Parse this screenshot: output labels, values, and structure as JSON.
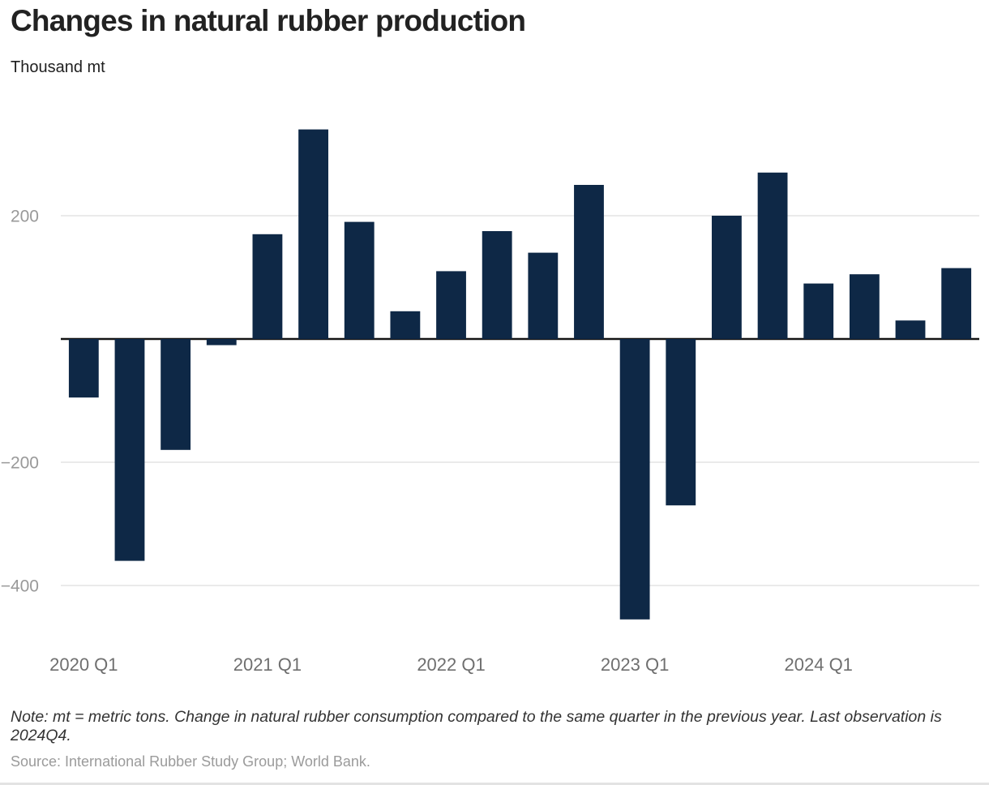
{
  "header": {
    "title": "Changes in natural rubber production",
    "subtitle": "Thousand mt"
  },
  "chart_data": {
    "type": "bar",
    "title": "Changes in natural rubber production",
    "ylabel": "Thousand mt",
    "categories": [
      "2020 Q1",
      "2020 Q2",
      "2020 Q3",
      "2020 Q4",
      "2021 Q1",
      "2021 Q2",
      "2021 Q3",
      "2021 Q4",
      "2022 Q1",
      "2022 Q2",
      "2022 Q3",
      "2022 Q4",
      "2023 Q1",
      "2023 Q2",
      "2023 Q3",
      "2023 Q4",
      "2024 Q1",
      "2024 Q2",
      "2024 Q3",
      "2024 Q4"
    ],
    "values": [
      -95,
      -360,
      -180,
      -10,
      170,
      340,
      190,
      45,
      110,
      175,
      140,
      250,
      -455,
      -270,
      200,
      270,
      90,
      105,
      30,
      115
    ],
    "x_tick_indices": [
      0,
      4,
      8,
      12,
      16
    ],
    "x_tick_labels": [
      "2020 Q1",
      "2021 Q1",
      "2022 Q1",
      "2023 Q1",
      "2024 Q1"
    ],
    "y_ticks": [
      200,
      -200,
      -400
    ],
    "y_tick_labels": [
      "200",
      "−200",
      "−400"
    ],
    "ylim": [
      -500,
      385
    ],
    "grid": true,
    "legend": "none",
    "colors": {
      "bar": "#0e2846",
      "grid": "#e4e4e4",
      "zero_line": "#141414",
      "y_tick_label": "#999999",
      "x_tick_label": "#6f6f6f"
    }
  },
  "footer": {
    "note": "Note: mt = metric tons. Change in natural rubber consumption compared to the same quarter in the previous year. Last observation is 2024Q4.",
    "source": "Source: International Rubber Study Group; World Bank."
  }
}
